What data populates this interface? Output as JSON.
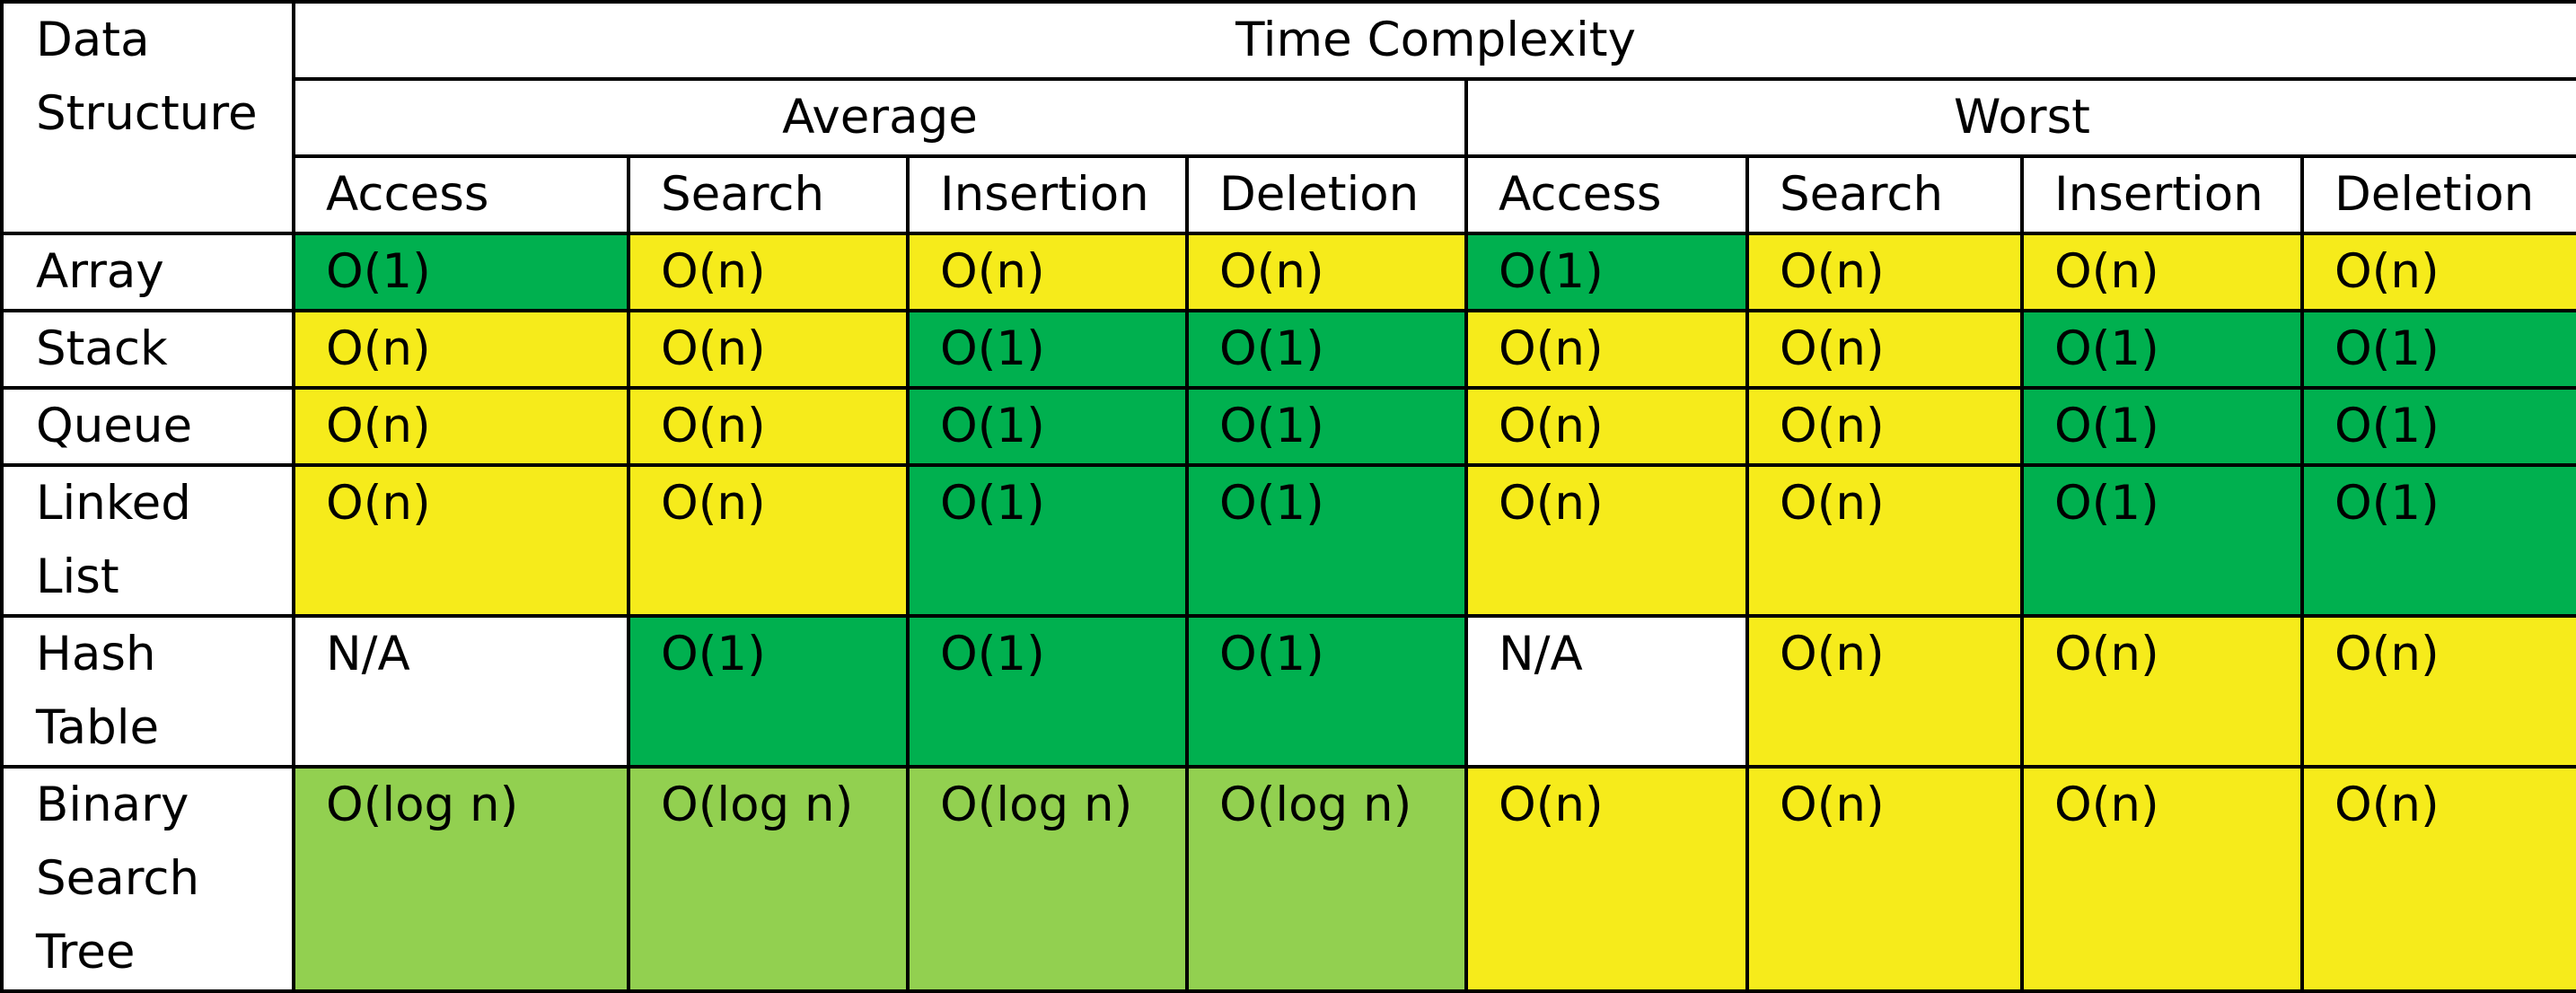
{
  "header": {
    "data_structure": [
      "Data",
      "Structure"
    ],
    "time_complexity": "Time Complexity",
    "groups": [
      "Average",
      "Worst"
    ],
    "operations": [
      "Access",
      "Search",
      "Insertion",
      "Deletion",
      "Access",
      "Search",
      "Insertion",
      "Deletion"
    ]
  },
  "colors": {
    "green": "#00b04f",
    "light_green": "#92d050",
    "yellow": "#f6eb1b",
    "white": "#ffffff"
  },
  "rows": [
    {
      "name": [
        "Array"
      ],
      "cells": [
        {
          "v": "O(1)",
          "c": "green"
        },
        {
          "v": "O(n)",
          "c": "yellow"
        },
        {
          "v": "O(n)",
          "c": "yellow"
        },
        {
          "v": "O(n)",
          "c": "yellow"
        },
        {
          "v": "O(1)",
          "c": "green"
        },
        {
          "v": "O(n)",
          "c": "yellow"
        },
        {
          "v": "O(n)",
          "c": "yellow"
        },
        {
          "v": "O(n)",
          "c": "yellow"
        }
      ]
    },
    {
      "name": [
        "Stack"
      ],
      "cells": [
        {
          "v": "O(n)",
          "c": "yellow"
        },
        {
          "v": "O(n)",
          "c": "yellow"
        },
        {
          "v": "O(1)",
          "c": "green"
        },
        {
          "v": "O(1)",
          "c": "green"
        },
        {
          "v": "O(n)",
          "c": "yellow"
        },
        {
          "v": "O(n)",
          "c": "yellow"
        },
        {
          "v": "O(1)",
          "c": "green"
        },
        {
          "v": "O(1)",
          "c": "green"
        }
      ]
    },
    {
      "name": [
        "Queue"
      ],
      "cells": [
        {
          "v": "O(n)",
          "c": "yellow"
        },
        {
          "v": "O(n)",
          "c": "yellow"
        },
        {
          "v": "O(1)",
          "c": "green"
        },
        {
          "v": "O(1)",
          "c": "green"
        },
        {
          "v": "O(n)",
          "c": "yellow"
        },
        {
          "v": "O(n)",
          "c": "yellow"
        },
        {
          "v": "O(1)",
          "c": "green"
        },
        {
          "v": "O(1)",
          "c": "green"
        }
      ]
    },
    {
      "name": [
        "Linked",
        "List"
      ],
      "cells": [
        {
          "v": "O(n)",
          "c": "yellow"
        },
        {
          "v": "O(n)",
          "c": "yellow"
        },
        {
          "v": "O(1)",
          "c": "green"
        },
        {
          "v": "O(1)",
          "c": "green"
        },
        {
          "v": "O(n)",
          "c": "yellow"
        },
        {
          "v": "O(n)",
          "c": "yellow"
        },
        {
          "v": "O(1)",
          "c": "green"
        },
        {
          "v": "O(1)",
          "c": "green"
        }
      ]
    },
    {
      "name": [
        "Hash",
        "Table"
      ],
      "cells": [
        {
          "v": "N/A",
          "c": "white"
        },
        {
          "v": "O(1)",
          "c": "green"
        },
        {
          "v": "O(1)",
          "c": "green"
        },
        {
          "v": "O(1)",
          "c": "green"
        },
        {
          "v": "N/A",
          "c": "white"
        },
        {
          "v": "O(n)",
          "c": "yellow"
        },
        {
          "v": "O(n)",
          "c": "yellow"
        },
        {
          "v": "O(n)",
          "c": "yellow"
        }
      ]
    },
    {
      "name": [
        "Binary",
        "Search",
        "Tree"
      ],
      "cells": [
        {
          "v": "O(log n)",
          "c": "light_green"
        },
        {
          "v": "O(log n)",
          "c": "light_green"
        },
        {
          "v": "O(log n)",
          "c": "light_green"
        },
        {
          "v": "O(log n)",
          "c": "light_green"
        },
        {
          "v": "O(n)",
          "c": "yellow"
        },
        {
          "v": "O(n)",
          "c": "yellow"
        },
        {
          "v": "O(n)",
          "c": "yellow"
        },
        {
          "v": "O(n)",
          "c": "yellow"
        }
      ]
    }
  ]
}
